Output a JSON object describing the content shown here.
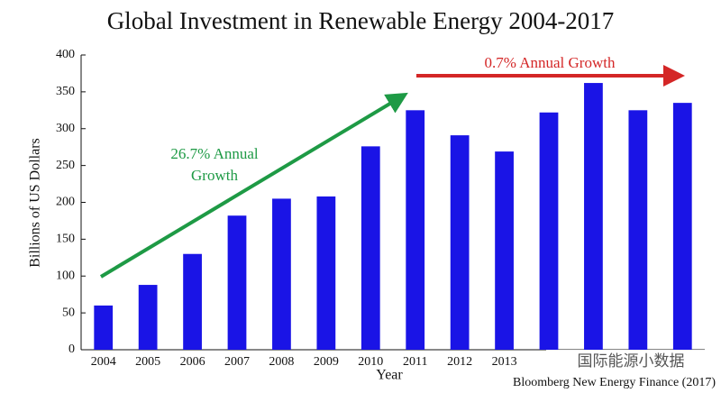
{
  "chart_data": {
    "type": "bar",
    "title": "Global Investment in Renewable Energy 2004-2017",
    "x_label": "Year",
    "y_label": "Billions of US Dollars",
    "source": "Bloomberg New Energy Finance (2017)",
    "annotations": [
      "26.7% Annual",
      "Growth",
      "0.7% Annual Growth"
    ],
    "watermark": "国际能源小数据",
    "categories": [
      "2004",
      "2005",
      "2006",
      "2007",
      "2008",
      "2009",
      "2010",
      "2011",
      "2012",
      "2013",
      null,
      null,
      null,
      null
    ],
    "values": [
      60,
      88,
      130,
      182,
      205,
      208,
      276,
      325,
      291,
      269,
      322,
      362,
      325,
      335
    ],
    "color": "#1a14e6",
    "ylim": [
      0,
      400
    ],
    "yticks": [
      0,
      50,
      100,
      150,
      200,
      250,
      300,
      350,
      400
    ],
    "grid": false
  }
}
